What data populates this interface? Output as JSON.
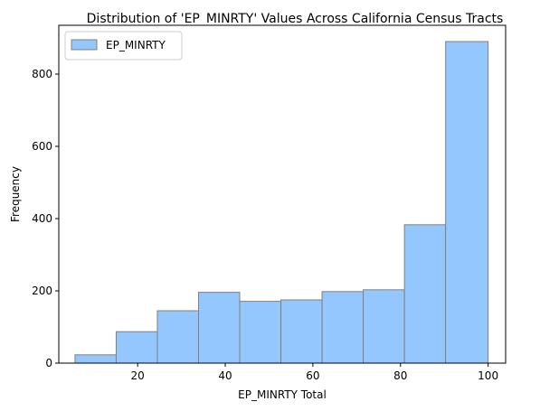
{
  "chart_data": {
    "type": "bar",
    "title": "Distribution of 'EP_MINRTY' Values Across California Census Tracts",
    "xlabel": "EP_MINRTY Total",
    "ylabel": "Frequency",
    "xlim": [
      2,
      104
    ],
    "ylim": [
      0,
      935
    ],
    "xticks": [
      20,
      40,
      60,
      80,
      100
    ],
    "yticks": [
      0,
      200,
      400,
      600,
      800
    ],
    "legend": {
      "position": "top-left",
      "entries": [
        "EP_MINRTY"
      ]
    },
    "grid": false,
    "bin_edges": [
      5.7,
      15.1,
      24.5,
      33.9,
      43.3,
      52.7,
      62.1,
      71.5,
      80.9,
      90.3,
      100.0
    ],
    "series": [
      {
        "name": "EP_MINRTY",
        "values": [
          23,
          87,
          145,
          196,
          171,
          175,
          198,
          203,
          383,
          890
        ],
        "color": "#94c7fe",
        "edgecolor": "#808080"
      }
    ]
  }
}
